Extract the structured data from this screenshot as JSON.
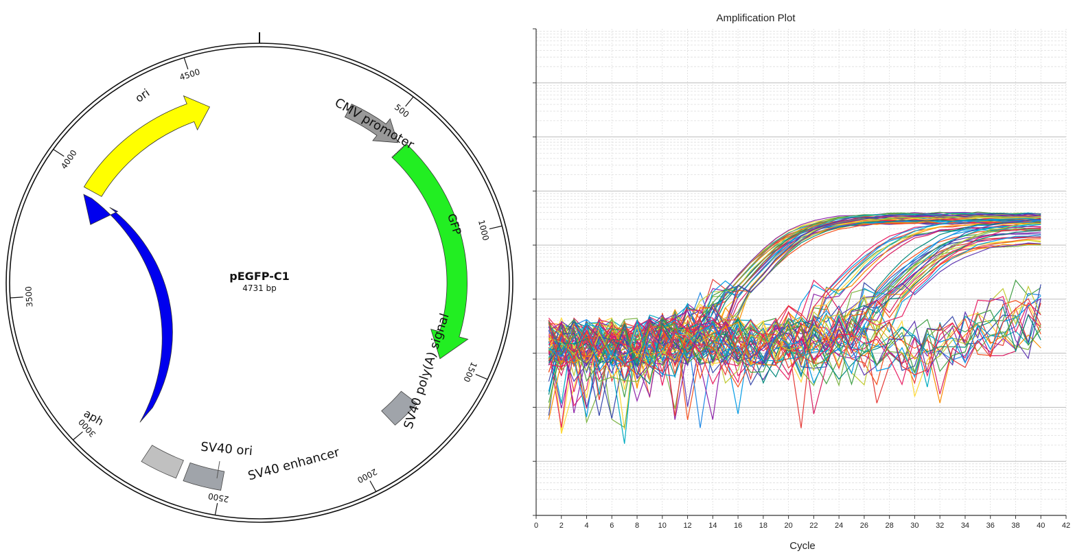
{
  "plasmid_map": {
    "name": "pEGFP-C1",
    "size_label": "4731 bp",
    "total_bp": 4731,
    "tick_labels": [
      {
        "bp": 500,
        "text": "500"
      },
      {
        "bp": 1000,
        "text": "1000"
      },
      {
        "bp": 1500,
        "text": "1500"
      },
      {
        "bp": 2000,
        "text": "2000"
      },
      {
        "bp": 2500,
        "text": "2500"
      },
      {
        "bp": 3000,
        "text": "3000"
      },
      {
        "bp": 3500,
        "text": "3500"
      },
      {
        "bp": 4000,
        "text": "4000"
      },
      {
        "bp": 4500,
        "text": "4500"
      }
    ],
    "features": [
      {
        "id": "ori",
        "label": "ori",
        "kind": "arrow",
        "color": "#ffff00",
        "label_color": "#111111"
      },
      {
        "id": "cmv",
        "label": "CMV promoter",
        "kind": "arrow",
        "color": "#999999"
      },
      {
        "id": "gfp",
        "label": "GFP",
        "kind": "arrow",
        "color": "#22ee22"
      },
      {
        "id": "polya",
        "label": "SV40 poly(A) signal",
        "kind": "box",
        "color": "#a0a4aa"
      },
      {
        "id": "enhancer",
        "label": "SV40 enhancer",
        "kind": "box",
        "color": "#a0a4aa"
      },
      {
        "id": "sv40ori",
        "label": "SV40 ori",
        "kind": "box",
        "color": "#c0c0c0"
      },
      {
        "id": "aph",
        "label": "aph",
        "kind": "arrow",
        "color": "#0000ee",
        "label_color": "#ffffff"
      }
    ]
  },
  "chart_data": {
    "type": "line",
    "title": "Amplification Plot",
    "xlabel": "Cycle",
    "ylabel": "",
    "xlim": [
      0,
      42
    ],
    "x_ticks": [
      "0",
      "2",
      "4",
      "6",
      "8",
      "10",
      "12",
      "14",
      "16",
      "18",
      "20",
      "22",
      "24",
      "26",
      "28",
      "30",
      "32",
      "34",
      "36",
      "38",
      "40",
      "42"
    ],
    "y_scale": "log",
    "y_tick_labels": [],
    "grid": true,
    "legend": "none",
    "cycles": [
      1,
      40
    ],
    "curve_groups": [
      {
        "name": "",
        "count": 30,
        "ct_range": [
          11,
          13.5
        ],
        "plateau_decades": [
          8.4,
          8.6
        ]
      },
      {
        "name": "",
        "count": 10,
        "ct_range": [
          19,
          21
        ],
        "plateau_decades": [
          8.3,
          8.5
        ]
      },
      {
        "name": "",
        "count": 24,
        "ct_range": [
          22.5,
          26
        ],
        "plateau_decades": [
          8.0,
          8.5
        ]
      },
      {
        "name": "",
        "count": 8,
        "ct_range": [
          33,
          37.5
        ],
        "plateau_decades": [
          6.8,
          7.8
        ]
      },
      {
        "name": "",
        "count": 10,
        "ct_range": null,
        "plateau_decades": null
      }
    ],
    "series_colors": [
      "#e53935",
      "#43a047",
      "#1e88e5",
      "#fdd835",
      "#8e24aa",
      "#00acc1",
      "#fb8c00",
      "#d81b60",
      "#7cb342",
      "#3949ab",
      "#f4511e",
      "#00897b",
      "#c0ca33",
      "#5e35b1",
      "#039be5",
      "#e91e63"
    ]
  }
}
